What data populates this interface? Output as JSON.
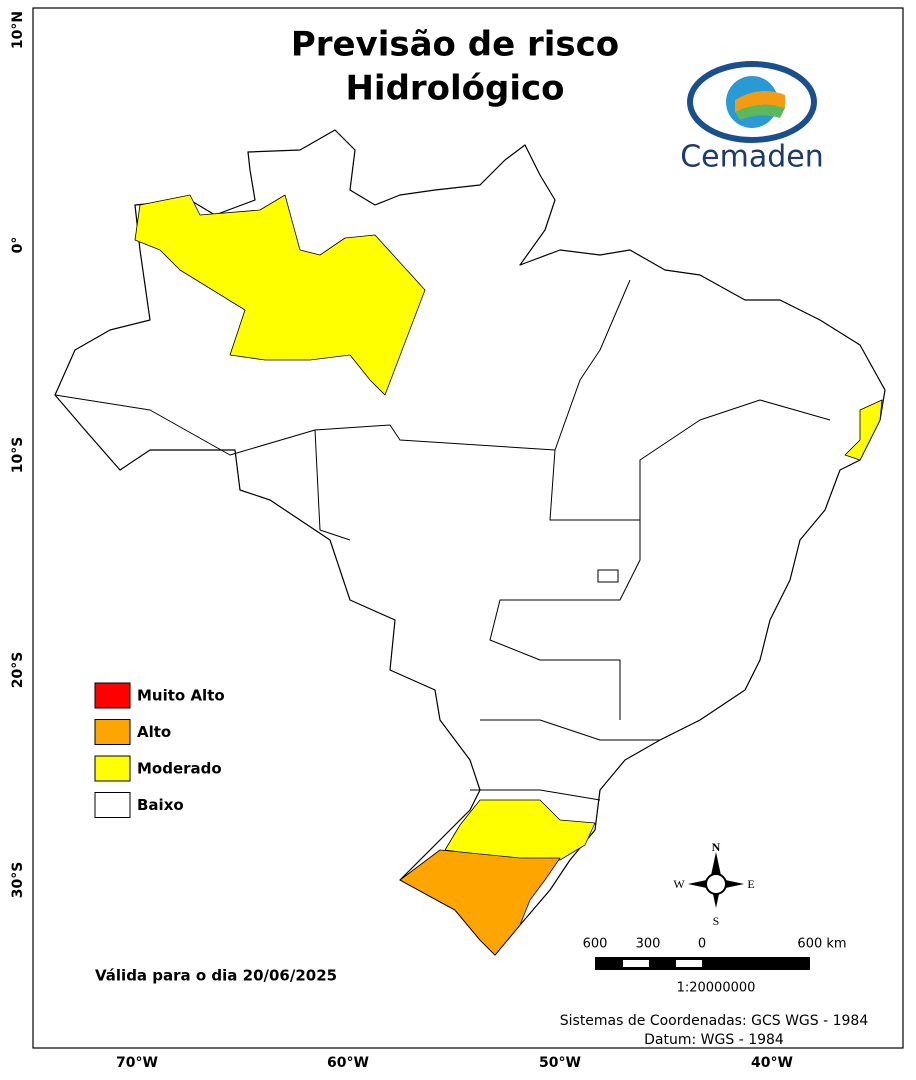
{
  "title": {
    "line1": "Previsão de risco",
    "line2": "Hidrológico"
  },
  "logo": {
    "text": "Cemaden"
  },
  "legend": [
    {
      "label": "Muito Alto",
      "color": "#ff0000"
    },
    {
      "label": "Alto",
      "color": "#ffa500"
    },
    {
      "label": "Moderado",
      "color": "#ffff00"
    },
    {
      "label": "Baixo",
      "color": "#ffffff"
    }
  ],
  "valid_date": "Válida para o dia 20/06/2025",
  "compass": {
    "n": "N",
    "s": "S",
    "w": "W",
    "e": "E"
  },
  "scale": {
    "labels": [
      "600",
      "300",
      "0",
      "600 km"
    ],
    "ratio": "1:20000000"
  },
  "credits": {
    "coords": "Sistemas de Coordenadas: GCS WGS - 1984",
    "datum": "Datum: WGS - 1984"
  },
  "axes": {
    "lat": [
      "10°N",
      "0°",
      "10°S",
      "20°S",
      "30°S"
    ],
    "lon": [
      "70°W",
      "60°W",
      "50°W",
      "40°W"
    ]
  }
}
